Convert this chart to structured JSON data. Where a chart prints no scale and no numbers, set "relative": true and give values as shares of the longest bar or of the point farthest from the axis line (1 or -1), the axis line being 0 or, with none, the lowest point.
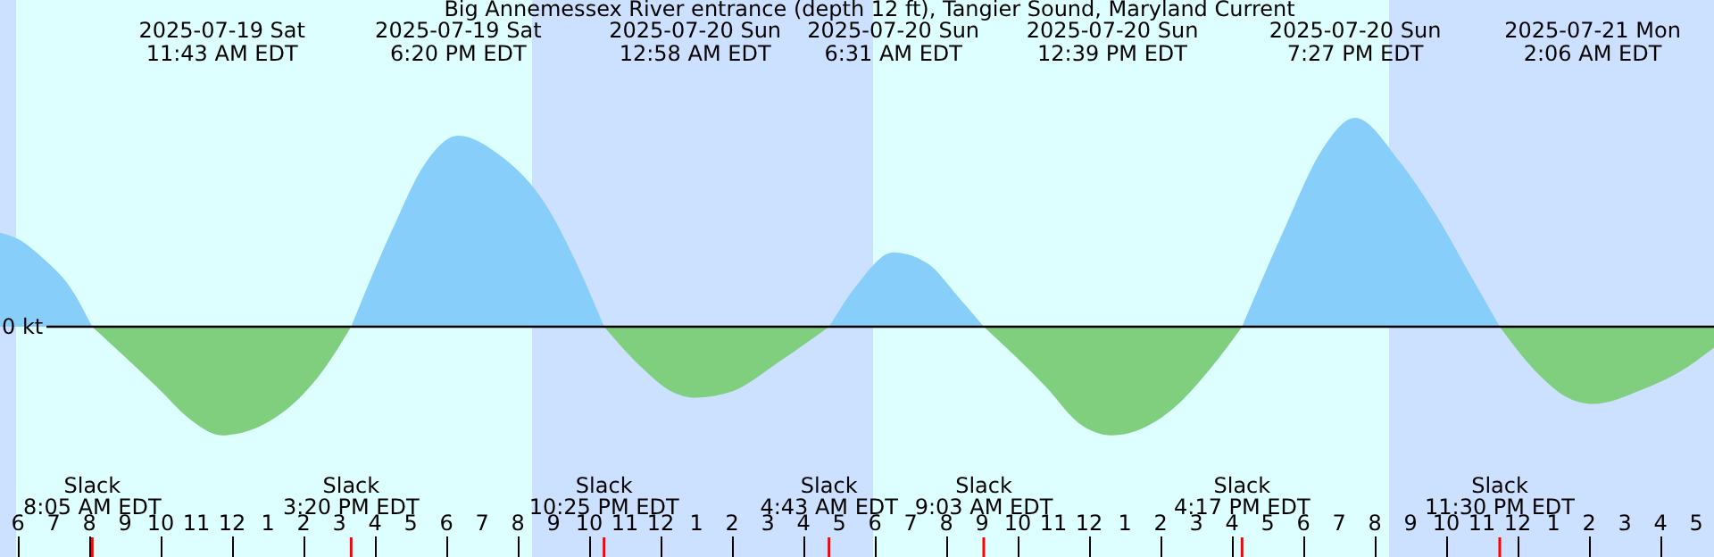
{
  "chart_data": {
    "type": "area",
    "title": "Big Annemessex River entrance (depth 12 ft), Tangier Sound, Maryland Current",
    "relative": true,
    "x": [
      "2025-07-19T05:30",
      "2025-07-19T06:00",
      "2025-07-19T06:45",
      "2025-07-19T07:30",
      "2025-07-19T08:05",
      "2025-07-19T09:54",
      "2025-07-19T10:48",
      "2025-07-19T11:43",
      "2025-07-19T13:30",
      "2025-07-19T14:30",
      "2025-07-19T15:20",
      "2025-07-19T16:30",
      "2025-07-19T17:24",
      "2025-07-19T18:20",
      "2025-07-19T19:30",
      "2025-07-19T20:48",
      "2025-07-19T21:36",
      "2025-07-19T22:25",
      "2025-07-19T23:30",
      "2025-07-20T00:18",
      "2025-07-20T00:58",
      "2025-07-20T02:00",
      "2025-07-20T03:18",
      "2025-07-20T04:43",
      "2025-07-20T05:30",
      "2025-07-20T06:31",
      "2025-07-20T07:30",
      "2025-07-20T08:18",
      "2025-07-20T09:03",
      "2025-07-20T10:48",
      "2025-07-20T11:42",
      "2025-07-20T12:39",
      "2025-07-20T14:18",
      "2025-07-20T15:24",
      "2025-07-20T16:17",
      "2025-07-20T17:30",
      "2025-07-20T18:30",
      "2025-07-20T19:27",
      "2025-07-20T20:42",
      "2025-07-20T21:42",
      "2025-07-20T22:42",
      "2025-07-20T23:30",
      "2025-07-21T00:36",
      "2025-07-21T01:24",
      "2025-07-21T02:06",
      "2025-07-21T03:30",
      "2025-07-21T04:30",
      "2025-07-21T05:30"
    ],
    "series": [
      {
        "color": "#87cefa",
        "values": [
          0.45,
          0.42,
          0.32,
          0.18,
          0,
          null,
          null,
          null,
          null,
          null,
          0,
          0.47,
          0.78,
          0.915,
          0.82,
          0.58,
          0.32,
          0,
          null,
          null,
          null,
          null,
          null,
          0,
          0.2,
          0.356,
          0.3,
          0.15,
          0,
          null,
          null,
          null,
          null,
          null,
          0,
          0.48,
          0.84,
          1.0,
          0.79,
          0.54,
          0.24,
          0,
          null,
          null,
          null,
          null,
          null,
          null
        ]
      },
      {
        "color": "#7fcf7f",
        "values": [
          null,
          null,
          null,
          null,
          0,
          -0.29,
          -0.44,
          -0.52,
          -0.4,
          -0.22,
          0,
          null,
          null,
          null,
          null,
          null,
          null,
          0,
          -0.2,
          -0.31,
          -0.34,
          -0.31,
          -0.17,
          0,
          null,
          null,
          null,
          null,
          0,
          -0.29,
          -0.46,
          -0.52,
          -0.4,
          -0.2,
          0,
          null,
          null,
          null,
          null,
          null,
          null,
          0,
          -0.23,
          -0.34,
          -0.37,
          -0.3,
          -0.22,
          -0.1
        ]
      }
    ],
    "xlim": [
      "2025-07-19T05:30",
      "2025-07-21T05:30"
    ],
    "xticks": [
      {
        "value": "2025-07-19T06:00",
        "label": "6"
      },
      {
        "value": "2025-07-19T07:00",
        "label": "7"
      },
      {
        "value": "2025-07-19T08:00",
        "label": "8"
      },
      {
        "value": "2025-07-19T09:00",
        "label": "9"
      },
      {
        "value": "2025-07-19T10:00",
        "label": "10"
      },
      {
        "value": "2025-07-19T11:00",
        "label": "11"
      },
      {
        "value": "2025-07-19T12:00",
        "label": "12"
      },
      {
        "value": "2025-07-19T13:00",
        "label": "1"
      },
      {
        "value": "2025-07-19T14:00",
        "label": "2"
      },
      {
        "value": "2025-07-19T15:00",
        "label": "3"
      },
      {
        "value": "2025-07-19T16:00",
        "label": "4"
      },
      {
        "value": "2025-07-19T17:00",
        "label": "5"
      },
      {
        "value": "2025-07-19T18:00",
        "label": "6"
      },
      {
        "value": "2025-07-19T19:00",
        "label": "7"
      },
      {
        "value": "2025-07-19T20:00",
        "label": "8"
      },
      {
        "value": "2025-07-19T21:00",
        "label": "9"
      },
      {
        "value": "2025-07-19T22:00",
        "label": "10"
      },
      {
        "value": "2025-07-19T23:00",
        "label": "11"
      },
      {
        "value": "2025-07-20T00:00",
        "label": "12"
      },
      {
        "value": "2025-07-20T01:00",
        "label": "1"
      },
      {
        "value": "2025-07-20T02:00",
        "label": "2"
      },
      {
        "value": "2025-07-20T03:00",
        "label": "3"
      },
      {
        "value": "2025-07-20T04:00",
        "label": "4"
      },
      {
        "value": "2025-07-20T05:00",
        "label": "5"
      },
      {
        "value": "2025-07-20T06:00",
        "label": "6"
      },
      {
        "value": "2025-07-20T07:00",
        "label": "7"
      },
      {
        "value": "2025-07-20T08:00",
        "label": "8"
      },
      {
        "value": "2025-07-20T09:00",
        "label": "9"
      },
      {
        "value": "2025-07-20T10:00",
        "label": "10"
      },
      {
        "value": "2025-07-20T11:00",
        "label": "11"
      },
      {
        "value": "2025-07-20T12:00",
        "label": "12"
      },
      {
        "value": "2025-07-20T13:00",
        "label": "1"
      },
      {
        "value": "2025-07-20T14:00",
        "label": "2"
      },
      {
        "value": "2025-07-20T15:00",
        "label": "3"
      },
      {
        "value": "2025-07-20T16:00",
        "label": "4"
      },
      {
        "value": "2025-07-20T17:00",
        "label": "5"
      },
      {
        "value": "2025-07-20T18:00",
        "label": "6"
      },
      {
        "value": "2025-07-20T19:00",
        "label": "7"
      },
      {
        "value": "2025-07-20T20:00",
        "label": "8"
      },
      {
        "value": "2025-07-20T21:00",
        "label": "9"
      },
      {
        "value": "2025-07-20T22:00",
        "label": "10"
      },
      {
        "value": "2025-07-20T23:00",
        "label": "11"
      },
      {
        "value": "2025-07-21T00:00",
        "label": "12"
      },
      {
        "value": "2025-07-21T01:00",
        "label": "1"
      },
      {
        "value": "2025-07-21T02:00",
        "label": "2"
      },
      {
        "value": "2025-07-21T03:00",
        "label": "3"
      },
      {
        "value": "2025-07-21T04:00",
        "label": "4"
      },
      {
        "value": "2025-07-21T05:00",
        "label": "5"
      }
    ],
    "bands": [
      {
        "axis": "x",
        "from": "2025-07-19T05:30",
        "to": "2025-07-19T05:57",
        "color": "#cce0ff"
      },
      {
        "axis": "x",
        "from": "2025-07-19T05:57",
        "to": "2025-07-19T20:24",
        "color": "#ddffff"
      },
      {
        "axis": "x",
        "from": "2025-07-19T20:24",
        "to": "2025-07-20T05:57",
        "color": "#cce0ff"
      },
      {
        "axis": "x",
        "from": "2025-07-20T05:57",
        "to": "2025-07-20T20:24",
        "color": "#ddffff"
      },
      {
        "axis": "x",
        "from": "2025-07-20T20:24",
        "to": "2025-07-21T05:30",
        "color": "#cce0ff"
      }
    ],
    "annotations": [
      {
        "text": "0 kt",
        "y": 0
      }
    ],
    "x2lim": [
      "2025-07-19T05:30",
      "2025-07-21T05:30"
    ],
    "x2ticks": [
      {
        "value": "2025-07-19T11:43",
        "label": "2025-07-19 Sat\n11:43 AM EDT"
      },
      {
        "value": "2025-07-19T18:20",
        "label": "2025-07-19 Sat\n6:20 PM EDT"
      },
      {
        "value": "2025-07-20T00:58",
        "label": "2025-07-20 Sun\n12:58 AM EDT"
      },
      {
        "value": "2025-07-20T06:31",
        "label": "2025-07-20 Sun\n6:31 AM EDT"
      },
      {
        "value": "2025-07-20T12:39",
        "label": "2025-07-20 Sun\n12:39 PM EDT"
      },
      {
        "value": "2025-07-20T19:27",
        "label": "2025-07-20 Sun\n7:27 PM EDT"
      },
      {
        "value": "2025-07-21T02:06",
        "label": "2025-07-21 Mon\n2:06 AM EDT"
      }
    ],
    "ref_lines": [
      {
        "axis": "x",
        "value": "2025-07-19T08:05",
        "label": "Slack\n8:05 AM EDT",
        "color": "#ff0000"
      },
      {
        "axis": "x",
        "value": "2025-07-19T15:20",
        "label": "Slack\n3:20 PM EDT",
        "color": "#ff0000"
      },
      {
        "axis": "x",
        "value": "2025-07-19T22:25",
        "label": "Slack\n10:25 PM EDT",
        "color": "#ff0000"
      },
      {
        "axis": "x",
        "value": "2025-07-20T04:43",
        "label": "Slack\n4:43 AM EDT",
        "color": "#ff0000"
      },
      {
        "axis": "x",
        "value": "2025-07-20T09:03",
        "label": "Slack\n9:03 AM EDT",
        "color": "#ff0000"
      },
      {
        "axis": "x",
        "value": "2025-07-20T16:17",
        "label": "Slack\n4:17 PM EDT",
        "color": "#ff0000"
      },
      {
        "axis": "x",
        "value": "2025-07-20T23:30",
        "label": "Slack\n11:30 PM EDT",
        "color": "#ff0000"
      }
    ]
  }
}
